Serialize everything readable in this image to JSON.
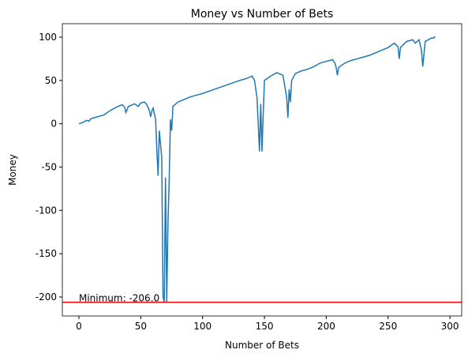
{
  "chart_data": {
    "type": "line",
    "title": "Money vs Number of Bets",
    "x_label": "Number of Bets",
    "y_label": "Money",
    "x": [
      0,
      2,
      4,
      6,
      8,
      10,
      15,
      20,
      25,
      30,
      35,
      37,
      38,
      40,
      45,
      48,
      50,
      53,
      55,
      57,
      58,
      59,
      60,
      62,
      63,
      64,
      65,
      67,
      68,
      69,
      70,
      71,
      72,
      73,
      74,
      75,
      76,
      80,
      85,
      90,
      100,
      110,
      120,
      130,
      135,
      140,
      142,
      144,
      146,
      147,
      148,
      149,
      150,
      155,
      160,
      165,
      168,
      169,
      170,
      171,
      172,
      175,
      180,
      185,
      190,
      195,
      200,
      205,
      207,
      208,
      209,
      210,
      215,
      220,
      225,
      230,
      235,
      240,
      245,
      250,
      255,
      258,
      259,
      260,
      265,
      270,
      272,
      275,
      277,
      278,
      279,
      280,
      285,
      287,
      288
    ],
    "series": [
      {
        "name": "Money",
        "color": "#1f77b4",
        "values": [
          0,
          1,
          2,
          4,
          3,
          6,
          8,
          10,
          15,
          19,
          22,
          19,
          13,
          20,
          23,
          20,
          24,
          25,
          22,
          15,
          8,
          15,
          18,
          5,
          -30,
          -60,
          -8,
          -40,
          -200,
          -206,
          -62,
          -206,
          -115,
          -65,
          5,
          -8,
          20,
          25,
          28,
          31,
          35,
          40,
          45,
          50,
          52,
          55,
          50,
          30,
          -32,
          23,
          -32,
          10,
          50,
          55,
          59,
          56,
          30,
          7,
          40,
          25,
          50,
          58,
          61,
          63,
          66,
          70,
          72,
          74,
          70,
          65,
          56,
          65,
          70,
          73,
          75,
          77,
          79,
          82,
          85,
          88,
          93,
          89,
          75,
          88,
          95,
          97,
          93,
          97,
          85,
          66,
          80,
          95,
          99,
          99,
          101
        ]
      }
    ],
    "hline": {
      "value": -206,
      "color": "red"
    },
    "annotation": {
      "text": "Minimum: -206.0",
      "x": 0,
      "y": -206
    },
    "xlim": [
      -13.4,
      309.5
    ],
    "ylim": [
      -221.9,
      115.5
    ],
    "xticks": [
      0,
      50,
      100,
      150,
      200,
      250,
      300
    ],
    "yticks": [
      -200,
      -150,
      -100,
      -50,
      0,
      50,
      100
    ]
  }
}
